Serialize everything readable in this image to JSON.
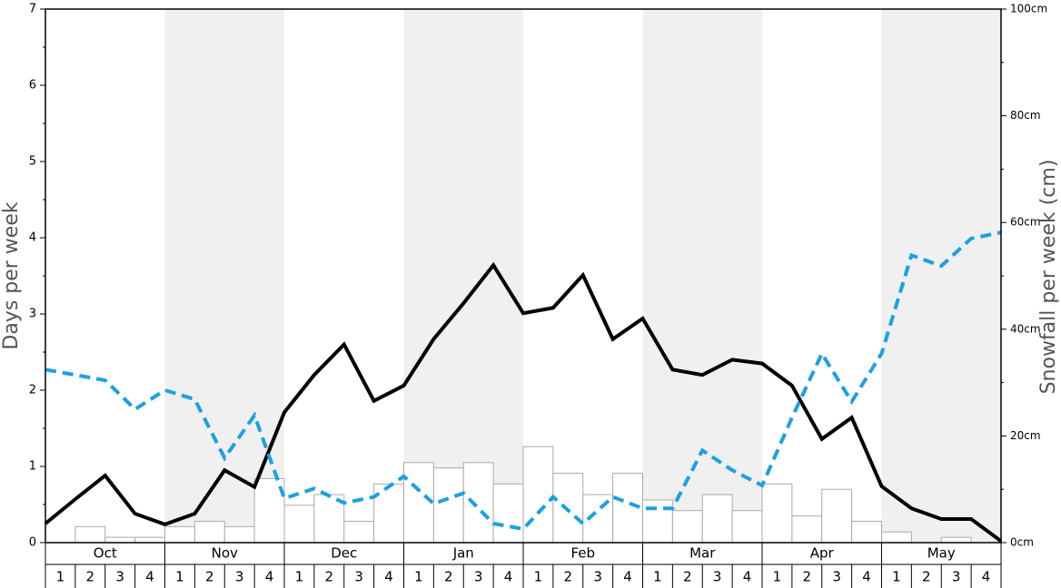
{
  "chart_data": {
    "type": "bar-line",
    "y_label": "Days per week",
    "y2_label": "Snowfall per week (cm)",
    "months": [
      "Oct",
      "Nov",
      "Dec",
      "Jan",
      "Feb",
      "Mar",
      "Apr",
      "May"
    ],
    "weeks": [
      "1",
      "2",
      "3",
      "4"
    ],
    "ylim": [
      0,
      7
    ],
    "yticks": [
      0,
      1,
      2,
      3,
      4,
      5,
      6,
      7
    ],
    "y2lim": [
      0,
      100
    ],
    "y2ticks": [
      {
        "value": 0,
        "label": "0cm"
      },
      {
        "value": 20,
        "label": "20cm"
      },
      {
        "value": 40,
        "label": "40cm"
      },
      {
        "value": 60,
        "label": "60cm"
      },
      {
        "value": 80,
        "label": "80cm"
      },
      {
        "value": 100,
        "label": "100cm"
      }
    ],
    "bars": {
      "axis": "y2",
      "color": "#ffffff",
      "edge": "#aaaaaa",
      "values": [
        0,
        3,
        1,
        1,
        3,
        4,
        3,
        12,
        7,
        9,
        4,
        11,
        15,
        14,
        15,
        11,
        18,
        13,
        9,
        13,
        8,
        6,
        9,
        6,
        11,
        5,
        10,
        4,
        2,
        0,
        1,
        0
      ]
    },
    "series": [
      {
        "color": "#000000",
        "style": "solid",
        "values": [
          0.25,
          0.57,
          0.88,
          0.38,
          0.24,
          0.38,
          0.95,
          0.73,
          1.71,
          2.2,
          2.6,
          1.86,
          2.06,
          2.67,
          3.14,
          3.64,
          3.01,
          3.08,
          3.51,
          2.67,
          2.94,
          2.27,
          2.2,
          2.4,
          2.35,
          2.06,
          1.36,
          1.64,
          0.74,
          0.45,
          0.31,
          0.31,
          0.02
        ]
      },
      {
        "color": "#1ba1e2",
        "style": "dashed",
        "values": [
          2.27,
          2.2,
          2.13,
          1.75,
          2.0,
          1.88,
          1.11,
          1.67,
          0.58,
          0.71,
          0.52,
          0.6,
          0.87,
          0.51,
          0.65,
          0.25,
          0.18,
          0.6,
          0.25,
          0.6,
          0.45,
          0.45,
          1.21,
          0.95,
          0.75,
          1.64,
          2.48,
          1.85,
          2.48,
          3.77,
          3.63,
          3.99,
          4.07
        ]
      }
    ]
  }
}
